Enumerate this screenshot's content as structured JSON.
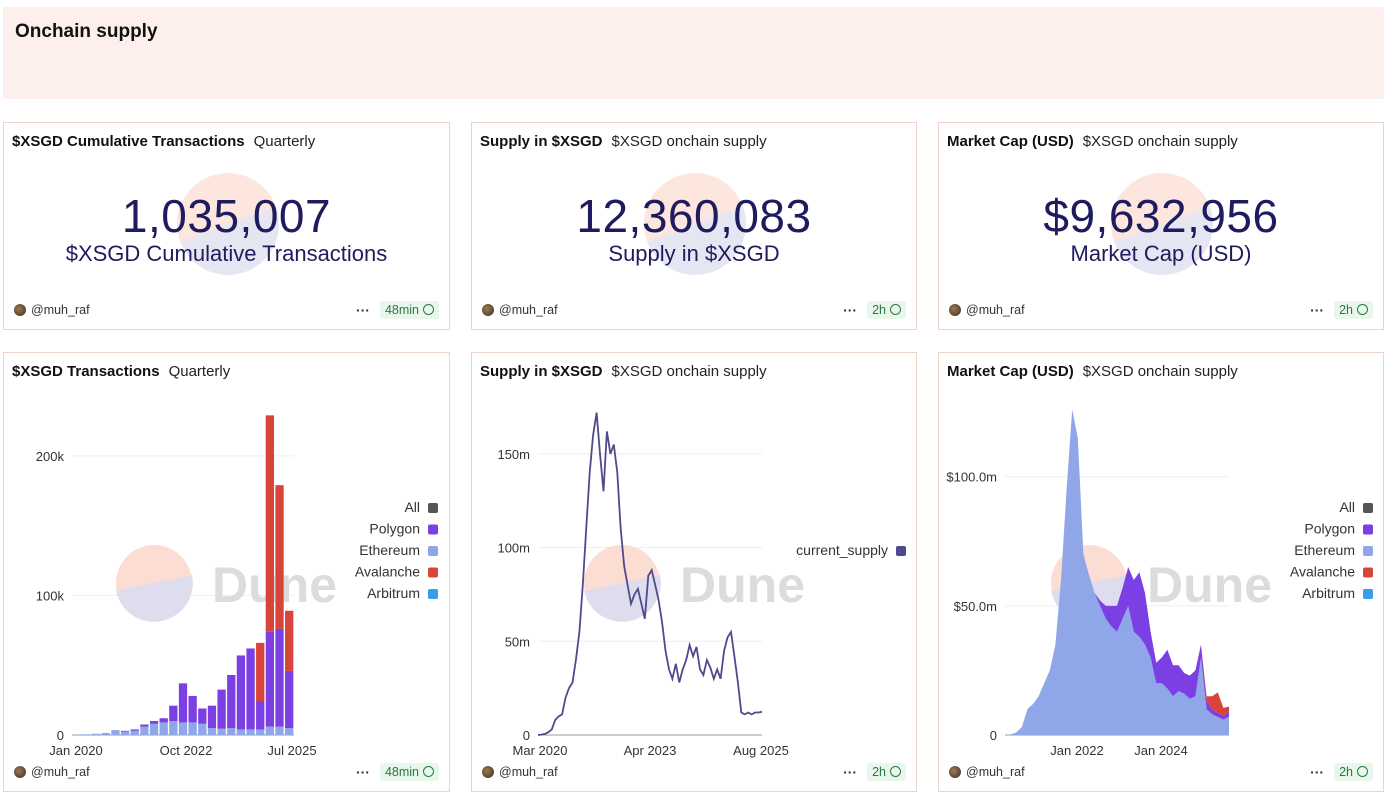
{
  "header": {
    "title": "Onchain supply"
  },
  "counters": [
    {
      "title": "$XSGD Cumulative Transactions",
      "subtitle": "Quarterly",
      "value": "1,035,007",
      "label": "$XSGD Cumulative Transactions",
      "author": "@muh_raf",
      "age": "48min"
    },
    {
      "title": "Supply in $XSGD",
      "subtitle": "$XSGD onchain supply",
      "value": "12,360,083",
      "label": "Supply in $XSGD",
      "author": "@muh_raf",
      "age": "2h"
    },
    {
      "title": "Market Cap (USD)",
      "subtitle": "$XSGD onchain supply",
      "value": "$9,632,956",
      "label": "Market Cap (USD)",
      "author": "@muh_raf",
      "age": "2h"
    }
  ],
  "charts": [
    {
      "title": "$XSGD Transactions",
      "subtitle": "Quarterly",
      "author": "@muh_raf",
      "age": "48min",
      "watermark": "Dune"
    },
    {
      "title": "Supply in $XSGD",
      "subtitle": "$XSGD onchain supply",
      "author": "@muh_raf",
      "age": "2h",
      "watermark": "Dune"
    },
    {
      "title": "Market Cap (USD)",
      "subtitle": "$XSGD onchain supply",
      "author": "@muh_raf",
      "age": "2h",
      "watermark": "Dune"
    }
  ],
  "colors": {
    "All": "#555555",
    "Polygon": "#7b3fe4",
    "Ethereum": "#8fa6e8",
    "Avalanche": "#d9443a",
    "Arbitrum": "#3b9de8",
    "current_supply": "#4e4a8c"
  },
  "chart_data": [
    {
      "type": "bar",
      "stacked": true,
      "x_ticks": [
        "Jan 2020",
        "Oct 2022",
        "Jul 2025"
      ],
      "y_ticks": [
        "0",
        "100k",
        "200k"
      ],
      "ylim": [
        0,
        235000
      ],
      "legend": [
        "All",
        "Polygon",
        "Ethereum",
        "Avalanche",
        "Arbitrum"
      ],
      "categories": [
        "Q1 2020",
        "Q2 2020",
        "Q3 2020",
        "Q4 2020",
        "Q1 2021",
        "Q2 2021",
        "Q3 2021",
        "Q4 2021",
        "Q1 2022",
        "Q2 2022",
        "Q3 2022",
        "Q4 2022",
        "Q1 2023",
        "Q2 2023",
        "Q3 2023",
        "Q4 2023",
        "Q1 2024",
        "Q2 2024",
        "Q3 2024",
        "Q4 2024",
        "Q1 2025",
        "Q2 2025",
        "Q3 2025"
      ],
      "series": [
        {
          "name": "Ethereum",
          "values": [
            300,
            500,
            900,
            1500,
            3500,
            2500,
            3000,
            6000,
            8000,
            9000,
            10000,
            9000,
            9000,
            8000,
            5000,
            4500,
            5000,
            4000,
            4000,
            4000,
            6000,
            6000,
            5000
          ]
        },
        {
          "name": "Polygon",
          "values": [
            0,
            0,
            0,
            0,
            0,
            500,
            1000,
            1500,
            2000,
            3000,
            11000,
            28000,
            19000,
            11000,
            16000,
            28000,
            38000,
            53000,
            58000,
            20000,
            68000,
            70000,
            41000
          ]
        },
        {
          "name": "Avalanche",
          "values": [
            0,
            0,
            0,
            0,
            0,
            0,
            0,
            0,
            0,
            0,
            0,
            0,
            0,
            0,
            0,
            0,
            0,
            0,
            0,
            42000,
            155000,
            103000,
            43000
          ]
        },
        {
          "name": "Arbitrum",
          "values": [
            0,
            0,
            0,
            0,
            0,
            0,
            0,
            0,
            0,
            0,
            0,
            0,
            0,
            0,
            0,
            0,
            0,
            0,
            0,
            0,
            0,
            0,
            0
          ]
        }
      ]
    },
    {
      "type": "line",
      "x_ticks": [
        "Mar 2020",
        "Apr 2023",
        "Aug 2025"
      ],
      "y_ticks": [
        "0",
        "50m",
        "100m",
        "150m"
      ],
      "ylim": [
        0,
        175000000
      ],
      "legend": [
        "current_supply"
      ],
      "series": [
        {
          "name": "current_supply",
          "values": [
            0,
            200000,
            600000,
            1500000,
            3000000,
            8000000,
            10000000,
            11000000,
            20000000,
            25000000,
            28000000,
            40000000,
            55000000,
            80000000,
            110000000,
            140000000,
            160000000,
            172000000,
            150000000,
            130000000,
            162000000,
            150000000,
            155000000,
            140000000,
            110000000,
            90000000,
            80000000,
            70000000,
            75000000,
            78000000,
            70000000,
            62000000,
            85000000,
            88000000,
            80000000,
            72000000,
            60000000,
            45000000,
            35000000,
            30000000,
            38000000,
            28000000,
            35000000,
            40000000,
            48000000,
            42000000,
            47000000,
            35000000,
            32000000,
            40000000,
            36000000,
            30000000,
            35000000,
            30000000,
            45000000,
            52000000,
            55000000,
            42000000,
            28000000,
            12000000,
            11000000,
            12000000,
            11000000,
            12000000,
            12000000,
            12360083
          ]
        }
      ]
    },
    {
      "type": "area",
      "stacked": true,
      "x_ticks": [
        "Jan 2022",
        "Jan 2024"
      ],
      "y_ticks": [
        "0",
        "$50.0m",
        "$100.0m"
      ],
      "ylim": [
        0,
        127000000
      ],
      "legend": [
        "All",
        "Polygon",
        "Ethereum",
        "Avalanche",
        "Arbitrum"
      ],
      "series": [
        {
          "name": "Ethereum",
          "values": [
            0,
            200000,
            1000000,
            3000000,
            10000000,
            12000000,
            15000000,
            20000000,
            25000000,
            35000000,
            60000000,
            95000000,
            126000000,
            115000000,
            70000000,
            62000000,
            55000000,
            50000000,
            45000000,
            42000000,
            40000000,
            45000000,
            50000000,
            40000000,
            38000000,
            35000000,
            30000000,
            20000000,
            20000000,
            18000000,
            15000000,
            17000000,
            16000000,
            14000000,
            15000000,
            30000000,
            10000000,
            8000000,
            7000000,
            6000000,
            7000000
          ]
        },
        {
          "name": "Polygon",
          "values": [
            0,
            0,
            0,
            0,
            0,
            0,
            0,
            0,
            0,
            0,
            0,
            0,
            0,
            0,
            0,
            0,
            0,
            2000000,
            5000000,
            8000000,
            10000000,
            12000000,
            15000000,
            20000000,
            25000000,
            20000000,
            10000000,
            8000000,
            10000000,
            15000000,
            12000000,
            10000000,
            8000000,
            9000000,
            10000000,
            5000000,
            3000000,
            2000000,
            1500000,
            1500000,
            2000000
          ]
        },
        {
          "name": "Avalanche",
          "values": [
            0,
            0,
            0,
            0,
            0,
            0,
            0,
            0,
            0,
            0,
            0,
            0,
            0,
            0,
            0,
            0,
            0,
            0,
            0,
            0,
            0,
            0,
            0,
            0,
            0,
            0,
            0,
            0,
            0,
            0,
            0,
            0,
            0,
            0,
            0,
            0,
            2000000,
            5000000,
            8000000,
            3000000,
            2000000
          ]
        },
        {
          "name": "Arbitrum",
          "values": [
            0,
            0,
            0,
            0,
            0,
            0,
            0,
            0,
            0,
            0,
            0,
            0,
            0,
            0,
            0,
            0,
            0,
            0,
            0,
            0,
            0,
            0,
            0,
            0,
            0,
            0,
            0,
            0,
            0,
            0,
            0,
            0,
            0,
            0,
            0,
            0,
            0,
            0,
            0,
            0,
            0
          ]
        }
      ]
    }
  ]
}
